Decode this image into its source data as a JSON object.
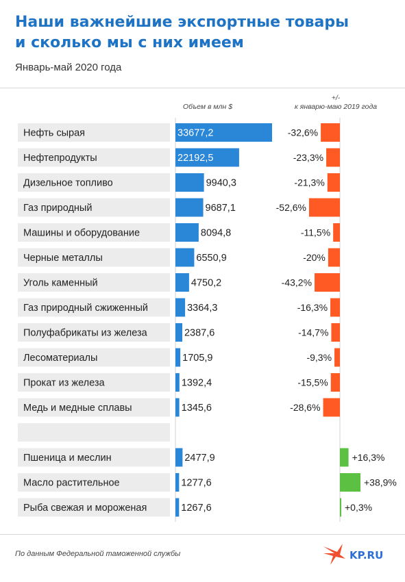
{
  "header": {
    "title_line1": "Наши важнейшие экспортные товары",
    "title_line2": "и сколько мы с них имеем",
    "subtitle": "Январь-май 2020 года"
  },
  "columns": {
    "volume": "Объем в млн $",
    "change_line1": "+/-",
    "change_line2": "к январю-маю 2019 года"
  },
  "footer": {
    "source": "По данным Федеральной таможенной службы",
    "logo": "KP.RU"
  },
  "colors": {
    "title": "#1f73c4",
    "volume_bar": "#2a86d6",
    "negative": "#ff5a23",
    "positive": "#5cc143",
    "label_bg": "#ececec"
  },
  "chart_data": {
    "type": "bar",
    "title": "Наши важнейшие экспортные товары и сколько мы с них имеем",
    "subtitle": "Январь-май 2020 года",
    "series": [
      {
        "name": "Объем в млн $",
        "categories": [
          "Нефть сырая",
          "Нефтепродукты",
          "Дизельное топливо",
          "Газ природный",
          "Машины и оборудование",
          "Черные металлы",
          "Уголь каменный",
          "Газ природный сжиженный",
          "Полуфабрикаты из железа",
          "Лесоматериалы",
          "Прокат из железа",
          "Медь и медные сплавы"
        ],
        "values": [
          33677.2,
          22192.5,
          9940.3,
          9687.1,
          8094.8,
          6550.9,
          4750.2,
          3364.3,
          2387.6,
          1705.9,
          1392.4,
          1345.6
        ],
        "labels": [
          "33677,2",
          "22192,5",
          "9940,3",
          "9687,1",
          "8094,8",
          "6550,9",
          "4750,2",
          "3364,3",
          "2387,6",
          "1705,9",
          "1392,4",
          "1345,6"
        ],
        "change": [
          -32.6,
          -23.3,
          -21.3,
          -52.6,
          -11.5,
          -20,
          -43.2,
          -16.3,
          -14.7,
          -9.3,
          -15.5,
          -28.6
        ],
        "change_labels": [
          "-32,6%",
          "-23,3%",
          "-21,3%",
          "-52,6%",
          "-11,5%",
          "-20%",
          "-43,2%",
          "-16,3%",
          "-14,7%",
          "-9,3%",
          "-15,5%",
          "-28,6%"
        ]
      },
      {
        "name": "",
        "categories": [
          "Пшеница и меслин",
          "Масло растительное",
          "Рыба свежая и мороженая"
        ],
        "values": [
          2477.9,
          1277.6,
          1267.6
        ],
        "labels": [
          "2477,9",
          "1277,6",
          "1267,6"
        ],
        "change": [
          16.3,
          38.9,
          0.3
        ],
        "change_labels": [
          "+16,3%",
          "+38,9%",
          "+0,3%"
        ]
      }
    ]
  }
}
